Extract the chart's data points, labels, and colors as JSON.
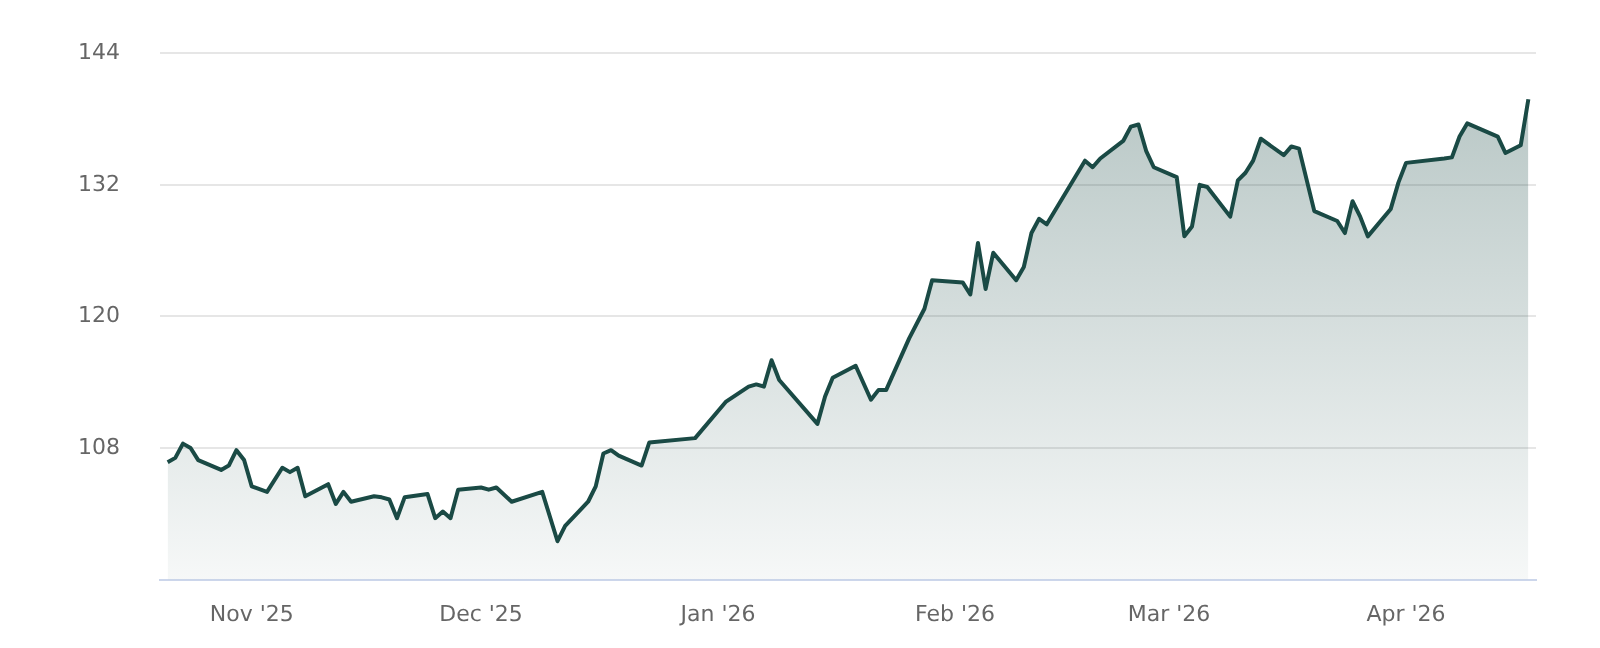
{
  "chart_data": {
    "type": "area",
    "x": [
      "2025-10-21",
      "2025-10-22",
      "2025-10-23",
      "2025-10-24",
      "2025-10-25",
      "2025-10-28",
      "2025-10-29",
      "2025-10-30",
      "2025-10-31",
      "2025-11-01",
      "2025-11-03",
      "2025-11-05",
      "2025-11-06",
      "2025-11-07",
      "2025-11-08",
      "2025-11-11",
      "2025-11-12",
      "2025-11-13",
      "2025-11-14",
      "2025-11-17",
      "2025-11-18",
      "2025-11-19",
      "2025-11-20",
      "2025-11-21",
      "2025-11-24",
      "2025-11-25",
      "2025-11-26",
      "2025-11-27",
      "2025-11-28",
      "2025-12-01",
      "2025-12-02",
      "2025-12-03",
      "2025-12-05",
      "2025-12-09",
      "2025-12-11",
      "2025-12-12",
      "2025-12-15",
      "2025-12-16",
      "2025-12-17",
      "2025-12-18",
      "2025-12-19",
      "2025-12-22",
      "2025-12-23",
      "2025-12-29",
      "2026-01-02",
      "2026-01-05",
      "2026-01-06",
      "2026-01-07",
      "2026-01-08",
      "2026-01-09",
      "2026-01-14",
      "2026-01-15",
      "2026-01-16",
      "2026-01-19",
      "2026-01-21",
      "2026-01-22",
      "2026-01-23",
      "2026-01-26",
      "2026-01-28",
      "2026-01-29",
      "2026-02-02",
      "2026-02-03",
      "2026-02-04",
      "2026-02-05",
      "2026-02-06",
      "2026-02-09",
      "2026-02-10",
      "2026-02-11",
      "2026-02-12",
      "2026-02-13",
      "2026-02-18",
      "2026-02-19",
      "2026-02-20",
      "2026-02-23",
      "2026-02-24",
      "2026-02-25",
      "2026-02-26",
      "2026-02-27",
      "2026-03-02",
      "2026-03-03",
      "2026-03-04",
      "2026-03-05",
      "2026-03-06",
      "2026-03-09",
      "2026-03-10",
      "2026-03-11",
      "2026-03-12",
      "2026-03-13",
      "2026-03-16",
      "2026-03-17",
      "2026-03-18",
      "2026-03-20",
      "2026-03-23",
      "2026-03-24",
      "2026-03-25",
      "2026-03-26",
      "2026-03-27",
      "2026-03-30",
      "2026-03-31",
      "2026-04-01",
      "2026-04-06",
      "2026-04-07",
      "2026-04-08",
      "2026-04-09",
      "2026-04-13",
      "2026-04-14",
      "2026-04-16",
      "2026-04-17"
    ],
    "series": [
      {
        "color": "#1a4a45",
        "values": [
          106.7,
          107.1,
          108.4,
          108.0,
          106.9,
          106.0,
          106.4,
          107.8,
          106.9,
          104.5,
          104.0,
          106.2,
          105.8,
          106.2,
          103.6,
          104.7,
          102.9,
          104.0,
          103.1,
          103.6,
          103.5,
          103.3,
          101.6,
          103.5,
          103.8,
          101.6,
          102.2,
          101.6,
          104.2,
          104.4,
          104.2,
          104.4,
          103.1,
          104.0,
          99.5,
          100.9,
          103.1,
          104.5,
          107.5,
          107.8,
          107.3,
          106.4,
          108.5,
          108.9,
          112.2,
          113.6,
          113.8,
          113.6,
          116.0,
          114.2,
          110.2,
          112.7,
          114.4,
          115.5,
          112.4,
          113.3,
          113.3,
          118.0,
          120.7,
          123.3,
          123.1,
          122.0,
          126.7,
          122.5,
          125.8,
          123.3,
          124.5,
          127.6,
          128.9,
          128.4,
          134.2,
          133.6,
          134.4,
          136.0,
          137.3,
          137.5,
          135.1,
          133.6,
          132.7,
          127.3,
          128.2,
          132.0,
          131.8,
          129.1,
          132.4,
          133.1,
          134.2,
          136.2,
          134.7,
          135.5,
          135.3,
          129.6,
          128.7,
          127.6,
          130.5,
          129.1,
          127.3,
          129.8,
          132.2,
          134.0,
          134.4,
          134.5,
          136.4,
          137.6,
          136.4,
          134.9,
          135.6,
          139.8
        ]
      }
    ],
    "xlim": [
      "2025-10-20",
      "2026-04-18"
    ],
    "xticks": [
      {
        "value": "2025-11-01",
        "label": "Nov '25"
      },
      {
        "value": "2025-12-01",
        "label": "Dec '25"
      },
      {
        "value": "2026-01-01",
        "label": "Jan '26"
      },
      {
        "value": "2026-02-01",
        "label": "Feb '26"
      },
      {
        "value": "2026-03-01",
        "label": "Mar '26"
      },
      {
        "value": "2026-04-01",
        "label": "Apr '26"
      }
    ],
    "ylim": [
      96,
      144
    ],
    "yticks": [
      108,
      120,
      132,
      144
    ],
    "grid": "y",
    "marker": "none",
    "line_style": "solid"
  }
}
